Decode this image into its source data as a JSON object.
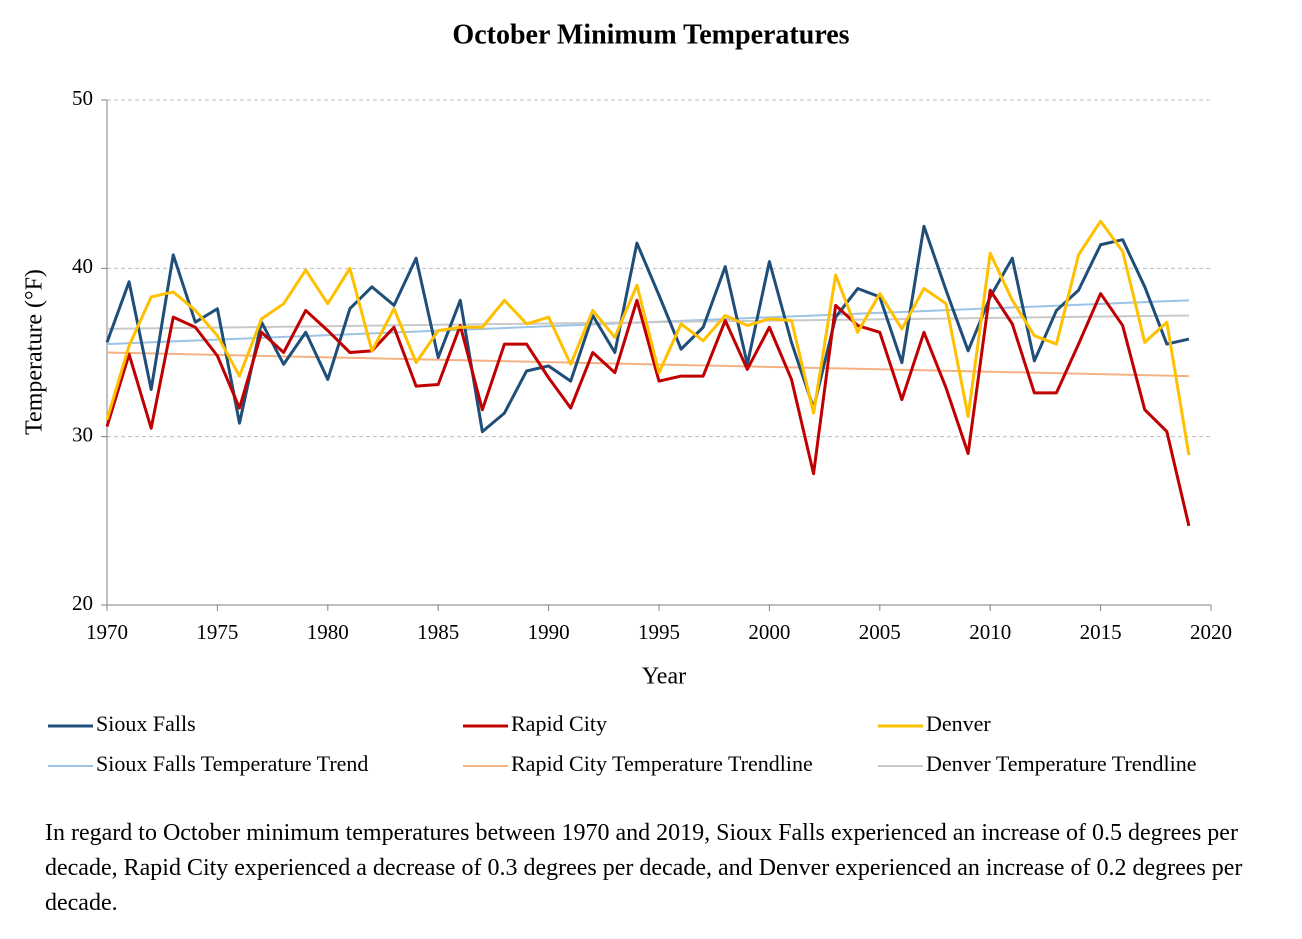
{
  "chart_data": {
    "type": "line",
    "title": "October Minimum Temperatures",
    "x_label": "Year",
    "y_label": "Temperature (°F)",
    "x": [
      1970,
      1971,
      1972,
      1973,
      1974,
      1975,
      1976,
      1977,
      1978,
      1979,
      1980,
      1981,
      1982,
      1983,
      1984,
      1985,
      1986,
      1987,
      1988,
      1989,
      1990,
      1991,
      1992,
      1993,
      1994,
      1995,
      1996,
      1997,
      1998,
      1999,
      2000,
      2001,
      2002,
      2003,
      2004,
      2005,
      2006,
      2007,
      2008,
      2009,
      2010,
      2011,
      2012,
      2013,
      2014,
      2015,
      2016,
      2017,
      2018,
      2019
    ],
    "xlim": [
      1970,
      2020
    ],
    "xticks": [
      1970,
      1975,
      1980,
      1985,
      1990,
      1995,
      2000,
      2005,
      2010,
      2015,
      2020
    ],
    "ylim": [
      20,
      50
    ],
    "yticks": [
      20,
      30,
      40,
      50
    ],
    "grid": true,
    "series": [
      {
        "name": "Sioux Falls",
        "color": "#1f4e79",
        "values": [
          35.6,
          39.2,
          32.8,
          40.8,
          36.8,
          37.6,
          30.8,
          36.8,
          34.3,
          36.2,
          33.4,
          37.6,
          38.9,
          37.8,
          40.6,
          34.7,
          38.1,
          30.3,
          31.4,
          33.9,
          34.2,
          33.3,
          37.2,
          35.0,
          41.5,
          38.4,
          35.2,
          36.5,
          40.1,
          34.3,
          40.4,
          35.6,
          31.7,
          37.1,
          38.8,
          38.3,
          34.4,
          42.5,
          38.7,
          35.1,
          38.3,
          40.6,
          34.5,
          37.5,
          38.7,
          41.4,
          41.7,
          38.9,
          35.5,
          35.8
        ]
      },
      {
        "name": "Rapid City",
        "color": "#c00000",
        "values": [
          30.6,
          34.9,
          30.5,
          37.1,
          36.5,
          34.8,
          31.7,
          36.2,
          35.0,
          37.5,
          36.3,
          35.0,
          35.1,
          36.5,
          33.0,
          33.1,
          36.6,
          31.6,
          35.5,
          35.5,
          33.5,
          31.7,
          35.0,
          33.8,
          38.1,
          33.3,
          33.6,
          33.6,
          36.9,
          34.0,
          36.5,
          33.4,
          27.8,
          37.8,
          36.6,
          36.2,
          32.2,
          36.2,
          32.9,
          29.0,
          38.7,
          36.7,
          32.6,
          32.6,
          35.5,
          38.5,
          36.6,
          31.6,
          30.3,
          24.7
        ]
      },
      {
        "name": "Denver",
        "color": "#ffc000",
        "values": [
          31.0,
          35.4,
          38.3,
          38.6,
          37.5,
          36.0,
          33.6,
          37.0,
          37.9,
          39.9,
          37.9,
          40.0,
          35.1,
          37.6,
          34.4,
          36.3,
          36.5,
          36.5,
          38.1,
          36.7,
          37.1,
          34.3,
          37.5,
          35.9,
          39.0,
          33.8,
          36.7,
          35.7,
          37.2,
          36.6,
          37.0,
          36.9,
          31.4,
          39.6,
          36.2,
          38.5,
          36.4,
          38.8,
          37.9,
          31.2,
          40.9,
          38.1,
          36.0,
          35.5,
          40.8,
          42.8,
          41.0,
          35.6,
          36.8,
          28.9
        ]
      },
      {
        "name": "Sioux Falls Temperature Trend",
        "color": "#9dc3e6",
        "x": [
          1970,
          2019
        ],
        "values": [
          35.5,
          38.1
        ]
      },
      {
        "name": "Rapid City Temperature Trendline",
        "color": "#f4b183",
        "x": [
          1970,
          2019
        ],
        "values": [
          35.0,
          33.6
        ]
      },
      {
        "name": "Denver Temperature Trendline",
        "color": "#c9c9c9",
        "x": [
          1970,
          2019
        ],
        "values": [
          36.4,
          37.2
        ]
      }
    ]
  },
  "caption": "In regard to October minimum temperatures between 1970 and 2019, Sioux Falls experienced an increase of 0.5 degrees per decade, Rapid City experienced a decrease of 0.3 degrees per decade, and Denver experienced an increase of 0.2 degrees per decade."
}
